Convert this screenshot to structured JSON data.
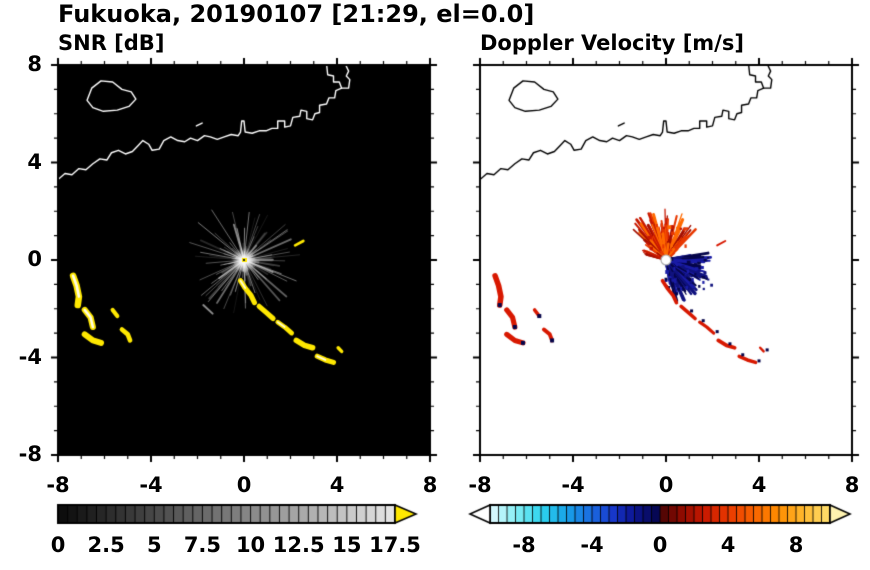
{
  "title": "Fukuoka, 20190107 [21:29, el=0.0]",
  "chart_data": [
    {
      "id": "snr",
      "type": "heatmap",
      "title": "SNR [dB]",
      "xlim": [
        -8,
        8
      ],
      "ylim": [
        -8,
        8
      ],
      "xticks": [
        -8,
        -4,
        0,
        4,
        8
      ],
      "yticks": [
        8,
        4,
        0,
        -4,
        -8
      ],
      "minor_tick_step": 1,
      "background": "#000000",
      "coast_color": "#ffffff",
      "echo_color": "#ffe800",
      "echo_core_color": "#ffffff",
      "radar_center": [
        0,
        0
      ],
      "colorbar": {
        "min": 0,
        "max": 17.5,
        "cell_step": 0.5,
        "tick_labels": [
          0,
          2.5,
          5,
          7.5,
          10,
          12.5,
          15,
          17.5
        ],
        "low_color": "#0a0a0a",
        "high_color": "#e6e6e6",
        "over_arrow_color": "#ffe800"
      }
    },
    {
      "id": "velocity",
      "type": "heatmap",
      "title": "Doppler Velocity [m/s]",
      "xlim": [
        -8,
        8
      ],
      "ylim": [
        -8,
        8
      ],
      "xticks": [
        -8,
        -4,
        0,
        4,
        8
      ],
      "yticks": [
        8,
        4,
        0,
        -4,
        -8
      ],
      "minor_tick_step": 1,
      "background": "#ffffff",
      "coast_color": "#000000",
      "away_colors": [
        "#05054a",
        "#10127e",
        "#1a1ca6"
      ],
      "toward_colors": [
        "#c81800",
        "#e83800",
        "#ff6a00",
        "#a50f00"
      ],
      "radar_center": [
        0,
        0
      ],
      "colorbar": {
        "min": -10,
        "max": 10,
        "cell_step": 0.5,
        "tick_labels": [
          -8,
          -4,
          0,
          4,
          8
        ],
        "stops": [
          [
            -10,
            "#e2f9ff"
          ],
          [
            -8.5,
            "#86eef4"
          ],
          [
            -7,
            "#2ed4ee"
          ],
          [
            -5.5,
            "#17a2e8"
          ],
          [
            -4,
            "#1b6ae0"
          ],
          [
            -2.8,
            "#1738cc"
          ],
          [
            -1.6,
            "#0d1694"
          ],
          [
            -0.05,
            "#05054a"
          ],
          [
            0.05,
            "#4a0505"
          ],
          [
            1.2,
            "#8c0a00"
          ],
          [
            2.6,
            "#c81800"
          ],
          [
            4,
            "#e83800"
          ],
          [
            5.5,
            "#f86200"
          ],
          [
            7,
            "#ff8e00"
          ],
          [
            8.5,
            "#ffba30"
          ],
          [
            10,
            "#ffe070"
          ]
        ],
        "under_arrow_color": "#ffffff",
        "over_arrow_color": "#fff3b0"
      }
    }
  ],
  "coastline_paths": [
    [
      [
        -6.75,
        6.55
      ],
      [
        -6.55,
        7.05
      ],
      [
        -6.15,
        7.35
      ],
      [
        -5.65,
        7.3
      ],
      [
        -5.25,
        7.0
      ],
      [
        -4.85,
        6.9
      ],
      [
        -4.65,
        6.6
      ],
      [
        -4.95,
        6.3
      ],
      [
        -5.45,
        6.15
      ],
      [
        -6.05,
        6.1
      ],
      [
        -6.5,
        6.25
      ],
      [
        -6.75,
        6.55
      ]
    ],
    [
      [
        -8,
        3.3
      ],
      [
        -7.7,
        3.55
      ],
      [
        -7.4,
        3.5
      ],
      [
        -7.1,
        3.75
      ],
      [
        -6.8,
        3.7
      ],
      [
        -6.5,
        3.95
      ],
      [
        -6.2,
        4.15
      ],
      [
        -5.9,
        4.1
      ],
      [
        -5.7,
        4.4
      ],
      [
        -5.4,
        4.5
      ],
      [
        -5.1,
        4.35
      ],
      [
        -4.8,
        4.45
      ],
      [
        -4.55,
        4.7
      ],
      [
        -4.35,
        4.9
      ],
      [
        -4.1,
        4.75
      ],
      [
        -3.95,
        4.5
      ],
      [
        -3.65,
        4.55
      ],
      [
        -3.45,
        4.9
      ],
      [
        -3.15,
        5.05
      ],
      [
        -2.85,
        4.9
      ],
      [
        -2.55,
        4.85
      ],
      [
        -2.3,
        5.0
      ],
      [
        -2.0,
        4.9
      ],
      [
        -1.7,
        5.1
      ],
      [
        -1.45,
        5.05
      ],
      [
        -1.15,
        4.95
      ],
      [
        -0.85,
        5.05
      ],
      [
        -0.55,
        5.15
      ],
      [
        -0.25,
        5.1
      ],
      [
        -0.15,
        5.25
      ],
      [
        -0.1,
        5.7
      ],
      [
        0.0,
        5.7
      ],
      [
        0.05,
        5.25
      ],
      [
        0.35,
        5.2
      ],
      [
        0.65,
        5.3
      ],
      [
        0.95,
        5.3
      ],
      [
        1.2,
        5.4
      ],
      [
        1.45,
        5.4
      ],
      [
        1.45,
        5.7
      ],
      [
        1.75,
        5.7
      ],
      [
        1.75,
        5.45
      ],
      [
        2.0,
        5.5
      ],
      [
        2.1,
        5.85
      ],
      [
        2.4,
        5.9
      ],
      [
        2.45,
        6.15
      ],
      [
        2.7,
        6.1
      ],
      [
        2.7,
        5.8
      ],
      [
        2.95,
        5.75
      ],
      [
        3.05,
        6.0
      ],
      [
        3.25,
        6.05
      ],
      [
        3.25,
        6.35
      ],
      [
        3.55,
        6.4
      ],
      [
        3.65,
        6.65
      ],
      [
        3.9,
        6.65
      ],
      [
        3.95,
        6.95
      ],
      [
        4.2,
        7.05
      ]
    ],
    [
      [
        3.55,
        8.05
      ],
      [
        3.6,
        7.6
      ],
      [
        3.85,
        7.55
      ],
      [
        3.85,
        7.3
      ],
      [
        4.1,
        7.3
      ],
      [
        4.2,
        7.05
      ],
      [
        4.5,
        7.05
      ],
      [
        4.55,
        7.4
      ],
      [
        4.4,
        7.55
      ],
      [
        4.5,
        7.75
      ],
      [
        4.35,
        8.05
      ]
    ],
    [
      [
        -2.05,
        5.5
      ],
      [
        -1.8,
        5.62
      ]
    ]
  ],
  "echo_features": {
    "west_blobs": [
      {
        "pts": [
          [
            -7.35,
            -0.65
          ],
          [
            -7.2,
            -1.05
          ],
          [
            -7.1,
            -1.5
          ],
          [
            -7.15,
            -1.85
          ]
        ],
        "w": 0.28
      },
      {
        "pts": [
          [
            -6.85,
            -2.05
          ],
          [
            -6.6,
            -2.35
          ],
          [
            -6.5,
            -2.75
          ]
        ],
        "w": 0.26
      },
      {
        "pts": [
          [
            -6.85,
            -3.05
          ],
          [
            -6.5,
            -3.3
          ],
          [
            -6.15,
            -3.4
          ]
        ],
        "w": 0.26
      },
      {
        "pts": [
          [
            -5.65,
            -2.05
          ],
          [
            -5.45,
            -2.3
          ]
        ],
        "w": 0.18
      },
      {
        "pts": [
          [
            -5.25,
            -2.85
          ],
          [
            -5.0,
            -3.05
          ],
          [
            -4.9,
            -3.3
          ]
        ],
        "w": 0.2
      }
    ],
    "southeast_chain": [
      {
        "pts": [
          [
            -0.15,
            -0.85
          ],
          [
            0.05,
            -1.15
          ],
          [
            0.3,
            -1.45
          ],
          [
            0.45,
            -1.75
          ]
        ],
        "w": 0.22
      },
      {
        "pts": [
          [
            0.65,
            -1.9
          ],
          [
            0.95,
            -2.15
          ],
          [
            1.25,
            -2.4
          ]
        ],
        "w": 0.22
      },
      {
        "pts": [
          [
            1.45,
            -2.55
          ],
          [
            1.75,
            -2.75
          ],
          [
            2.05,
            -3.0
          ]
        ],
        "w": 0.2
      },
      {
        "pts": [
          [
            2.25,
            -3.3
          ],
          [
            2.6,
            -3.5
          ],
          [
            2.95,
            -3.6
          ]
        ],
        "w": 0.24
      },
      {
        "pts": [
          [
            3.15,
            -3.95
          ],
          [
            3.5,
            -4.1
          ],
          [
            3.85,
            -4.2
          ]
        ],
        "w": 0.22
      },
      {
        "pts": [
          [
            4.05,
            -3.6
          ],
          [
            4.2,
            -3.75
          ]
        ],
        "w": 0.15
      }
    ],
    "northeast_dash": [
      {
        "pts": [
          [
            2.2,
            0.6
          ],
          [
            2.55,
            0.78
          ]
        ],
        "w": 0.12
      }
    ],
    "faint_dashes": [
      [
        [
          -1.75,
          -1.85
        ],
        [
          -1.35,
          -2.2
        ]
      ]
    ]
  }
}
